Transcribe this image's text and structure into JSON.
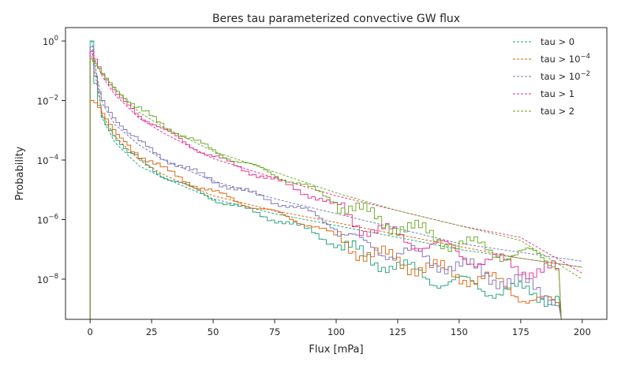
{
  "chart_data": {
    "type": "line",
    "title": "Beres tau parameterized convective GW flux",
    "xlabel": "Flux [mPa]",
    "ylabel": "Probability",
    "xlim": [
      -10,
      210
    ],
    "ylim_log10": [
      -9.35,
      0.45
    ],
    "yscale": "log",
    "grid": false,
    "legend_position": "top-right",
    "x_ticks": [
      0,
      25,
      50,
      75,
      100,
      125,
      150,
      175,
      200
    ],
    "y_ticks": [
      {
        "exp": 0,
        "label": "10",
        "sup": "0"
      },
      {
        "exp": -2,
        "label": "10",
        "sup": "-2"
      },
      {
        "exp": -4,
        "label": "10",
        "sup": "-4"
      },
      {
        "exp": -6,
        "label": "10",
        "sup": "-6"
      },
      {
        "exp": -8,
        "label": "10",
        "sup": "-8"
      }
    ],
    "series": [
      {
        "name": "tau > 0",
        "name_base": "tau > 0",
        "name_sup": "",
        "color": "#1b9e77",
        "histogram_log10": [
          [
            0,
            0
          ],
          [
            2,
            -1.9
          ],
          [
            5,
            -2.7
          ],
          [
            10,
            -3.3
          ],
          [
            15,
            -3.75
          ],
          [
            20,
            -4.05
          ],
          [
            30,
            -4.55
          ],
          [
            40,
            -4.95
          ],
          [
            50,
            -5.3
          ],
          [
            60,
            -5.6
          ],
          [
            75,
            -6.0
          ],
          [
            90,
            -6.4
          ],
          [
            100,
            -6.9
          ],
          [
            110,
            -7.2
          ],
          [
            125,
            -7.6
          ],
          [
            140,
            -8.0
          ],
          [
            160,
            -8.3
          ],
          [
            190,
            -8.6
          ]
        ],
        "fit_log10": [
          [
            0.7,
            0
          ],
          [
            5,
            -2.6
          ],
          [
            10,
            -3.4
          ],
          [
            20,
            -4.2
          ],
          [
            30,
            -4.6
          ],
          [
            50,
            -5.3
          ],
          [
            75,
            -5.8
          ],
          [
            100,
            -6.2
          ],
          [
            125,
            -6.6
          ],
          [
            150,
            -7.0
          ],
          [
            175,
            -7.3
          ],
          [
            200,
            -7.6
          ]
        ]
      },
      {
        "name": "tau > 10-4",
        "name_base": "tau > 10",
        "name_sup": "−4",
        "color": "#d95f02",
        "histogram_log10": [
          [
            0,
            -2
          ],
          [
            2,
            -2.1
          ],
          [
            5,
            -2.5
          ],
          [
            10,
            -3.1
          ],
          [
            15,
            -3.5
          ],
          [
            20,
            -3.85
          ],
          [
            30,
            -4.35
          ],
          [
            40,
            -4.75
          ],
          [
            50,
            -5.1
          ],
          [
            60,
            -5.4
          ],
          [
            75,
            -5.8
          ],
          [
            90,
            -6.2
          ],
          [
            100,
            -6.6
          ],
          [
            110,
            -7.1
          ],
          [
            125,
            -7.4
          ],
          [
            140,
            -7.7
          ],
          [
            160,
            -8.0
          ],
          [
            190,
            -9.0
          ]
        ],
        "fit_log10": [
          [
            0.7,
            -0.5
          ],
          [
            5,
            -2.5
          ],
          [
            10,
            -3.2
          ],
          [
            20,
            -4.0
          ],
          [
            30,
            -4.5
          ],
          [
            50,
            -5.2
          ],
          [
            75,
            -5.7
          ],
          [
            100,
            -6.1
          ],
          [
            125,
            -6.5
          ],
          [
            150,
            -6.9
          ],
          [
            175,
            -7.3
          ],
          [
            200,
            -7.6
          ]
        ]
      },
      {
        "name": "tau > 10-2",
        "name_base": "tau > 10",
        "name_sup": "−2",
        "color": "#7570b3",
        "histogram_log10": [
          [
            0,
            -0.2
          ],
          [
            2,
            -1.5
          ],
          [
            5,
            -2.1
          ],
          [
            10,
            -2.7
          ],
          [
            15,
            -3.1
          ],
          [
            20,
            -3.45
          ],
          [
            30,
            -3.95
          ],
          [
            40,
            -4.35
          ],
          [
            50,
            -4.7
          ],
          [
            60,
            -5.0
          ],
          [
            75,
            -5.4
          ],
          [
            90,
            -5.8
          ],
          [
            100,
            -6.3
          ],
          [
            110,
            -6.9
          ],
          [
            125,
            -7.1
          ],
          [
            140,
            -7.4
          ],
          [
            160,
            -7.8
          ],
          [
            190,
            -8.6
          ]
        ],
        "fit_log10": [
          [
            0.7,
            -0.3
          ],
          [
            5,
            -2.1
          ],
          [
            10,
            -2.8
          ],
          [
            20,
            -3.5
          ],
          [
            30,
            -4.0
          ],
          [
            50,
            -4.7
          ],
          [
            75,
            -5.3
          ],
          [
            100,
            -5.8
          ],
          [
            125,
            -6.3
          ],
          [
            150,
            -6.8
          ],
          [
            175,
            -7.1
          ],
          [
            200,
            -7.4
          ]
        ]
      },
      {
        "name": "tau > 1",
        "name_base": "tau > 1",
        "name_sup": "",
        "color": "#e7298a",
        "histogram_log10": [
          [
            0,
            -0.35
          ],
          [
            2,
            -0.7
          ],
          [
            5,
            -1.2
          ],
          [
            10,
            -1.75
          ],
          [
            15,
            -2.15
          ],
          [
            20,
            -2.5
          ],
          [
            30,
            -3.05
          ],
          [
            40,
            -3.5
          ],
          [
            50,
            -3.9
          ],
          [
            60,
            -4.25
          ],
          [
            75,
            -4.7
          ],
          [
            90,
            -5.2
          ],
          [
            100,
            -5.6
          ],
          [
            110,
            -6.2
          ],
          [
            125,
            -6.6
          ],
          [
            140,
            -6.9
          ],
          [
            160,
            -7.4
          ],
          [
            190,
            -7.8
          ]
        ],
        "fit_log10": [
          [
            0.7,
            -0.4
          ],
          [
            5,
            -1.2
          ],
          [
            10,
            -1.8
          ],
          [
            20,
            -2.6
          ],
          [
            30,
            -3.1
          ],
          [
            50,
            -3.95
          ],
          [
            75,
            -4.6
          ],
          [
            100,
            -5.2
          ],
          [
            125,
            -5.7
          ],
          [
            150,
            -6.2
          ],
          [
            175,
            -6.6
          ],
          [
            200,
            -7.8
          ]
        ]
      },
      {
        "name": "tau > 2",
        "name_base": "tau > 2",
        "name_sup": "",
        "color": "#66a61e",
        "histogram_log10": [
          [
            0,
            -0.6
          ],
          [
            2,
            -0.8
          ],
          [
            5,
            -1.15
          ],
          [
            10,
            -1.65
          ],
          [
            15,
            -2.05
          ],
          [
            20,
            -2.35
          ],
          [
            30,
            -2.85
          ],
          [
            40,
            -3.3
          ],
          [
            50,
            -3.7
          ],
          [
            60,
            -4.05
          ],
          [
            75,
            -4.5
          ],
          [
            90,
            -5.0
          ],
          [
            100,
            -5.4
          ],
          [
            110,
            -5.8
          ],
          [
            125,
            -6.2
          ],
          [
            140,
            -6.6
          ],
          [
            160,
            -7.0
          ],
          [
            190,
            -7.4
          ]
        ],
        "fit_log10": [
          [
            0.7,
            -0.6
          ],
          [
            5,
            -1.1
          ],
          [
            10,
            -1.6
          ],
          [
            20,
            -2.4
          ],
          [
            30,
            -2.9
          ],
          [
            50,
            -3.7
          ],
          [
            75,
            -4.4
          ],
          [
            100,
            -5.1
          ],
          [
            125,
            -5.7
          ],
          [
            150,
            -6.2
          ],
          [
            175,
            -6.7
          ],
          [
            200,
            -8.0
          ]
        ]
      }
    ]
  }
}
